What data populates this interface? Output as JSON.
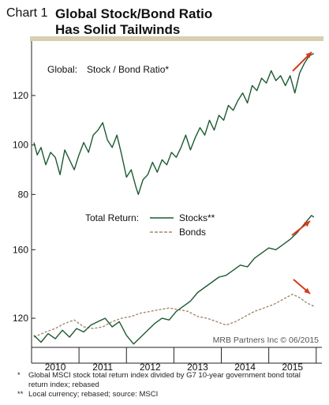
{
  "header": {
    "chart_number": "Chart 1",
    "title_line1": "Global Stock/Bond Ratio",
    "title_line2": "Has Solid Tailwinds"
  },
  "colors": {
    "stocks": "#1c5a32",
    "bonds": "#a08a6a",
    "arrow": "#d43a1a",
    "band": "#d7cfae",
    "axis": "#222222"
  },
  "chart_data": [
    {
      "type": "line",
      "panel": "top",
      "label": "Global:",
      "label2": "Stock / Bond Ratio*",
      "ylim": [
        75,
        142
      ],
      "yticks": [
        80,
        100,
        120
      ],
      "xlim": [
        2009.5,
        2015.62
      ],
      "series": [
        {
          "name": "Stock / Bond Ratio*",
          "x": [
            2009.55,
            2009.62,
            2009.7,
            2009.8,
            2009.9,
            2010.0,
            2010.1,
            2010.2,
            2010.3,
            2010.4,
            2010.5,
            2010.6,
            2010.7,
            2010.8,
            2010.9,
            2011.0,
            2011.1,
            2011.2,
            2011.3,
            2011.4,
            2011.5,
            2011.6,
            2011.7,
            2011.75,
            2011.85,
            2011.95,
            2012.05,
            2012.15,
            2012.25,
            2012.35,
            2012.45,
            2012.55,
            2012.65,
            2012.75,
            2012.85,
            2012.95,
            2013.05,
            2013.15,
            2013.25,
            2013.35,
            2013.45,
            2013.55,
            2013.65,
            2013.75,
            2013.85,
            2013.95,
            2014.05,
            2014.15,
            2014.25,
            2014.35,
            2014.45,
            2014.55,
            2014.65,
            2014.75,
            2014.85,
            2014.95,
            2015.05,
            2015.15,
            2015.25,
            2015.35,
            2015.45
          ],
          "y": [
            101,
            96,
            99,
            92,
            97,
            95,
            88,
            98,
            94,
            90,
            96,
            101,
            97,
            104,
            106,
            109,
            102,
            99,
            104,
            96,
            87,
            90,
            83,
            80,
            86,
            88,
            93,
            89,
            94,
            92,
            97,
            95,
            99,
            104,
            98,
            103,
            107,
            104,
            110,
            106,
            112,
            110,
            116,
            114,
            118,
            121,
            117,
            124,
            122,
            127,
            125,
            130,
            126,
            128,
            124,
            128,
            121,
            129,
            133,
            136,
            137
          ]
        }
      ]
    },
    {
      "type": "line",
      "panel": "bottom",
      "label": "Total Return:",
      "ylim": [
        103,
        185
      ],
      "yticks": [
        120,
        160
      ],
      "xlim": [
        2009.5,
        2015.62
      ],
      "series": [
        {
          "name": "Stocks**",
          "x": [
            2009.55,
            2009.7,
            2009.85,
            2010.0,
            2010.15,
            2010.3,
            2010.45,
            2010.6,
            2010.75,
            2010.9,
            2011.05,
            2011.2,
            2011.35,
            2011.5,
            2011.65,
            2011.8,
            2011.95,
            2012.1,
            2012.25,
            2012.4,
            2012.55,
            2012.7,
            2012.85,
            2013.0,
            2013.15,
            2013.3,
            2013.45,
            2013.6,
            2013.75,
            2013.9,
            2014.05,
            2014.2,
            2014.35,
            2014.5,
            2014.65,
            2014.8,
            2014.95,
            2015.1,
            2015.25,
            2015.4,
            2015.45
          ],
          "y": [
            110,
            106,
            111,
            108,
            113,
            109,
            114,
            112,
            116,
            118,
            120,
            115,
            118,
            110,
            105,
            109,
            113,
            117,
            120,
            119,
            124,
            127,
            130,
            135,
            138,
            141,
            144,
            145,
            148,
            151,
            150,
            155,
            158,
            161,
            160,
            163,
            166,
            170,
            175,
            180,
            179
          ]
        },
        {
          "name": "Bonds",
          "x": [
            2009.55,
            2009.8,
            2010.0,
            2010.2,
            2010.4,
            2010.6,
            2010.8,
            2011.0,
            2011.2,
            2011.4,
            2011.6,
            2011.8,
            2012.0,
            2012.2,
            2012.4,
            2012.6,
            2012.8,
            2013.0,
            2013.2,
            2013.4,
            2013.6,
            2013.8,
            2014.0,
            2014.2,
            2014.4,
            2014.6,
            2014.8,
            2015.0,
            2015.15,
            2015.3,
            2015.45
          ],
          "y": [
            109,
            112,
            114,
            117,
            119,
            115,
            114,
            115,
            118,
            120,
            121,
            123,
            124,
            125,
            126,
            125,
            124,
            121,
            120,
            118,
            116,
            118,
            121,
            124,
            126,
            128,
            131,
            134,
            132,
            129,
            127
          ]
        }
      ]
    }
  ],
  "xaxis": {
    "tick_labels": [
      "2010",
      "2011",
      "2012",
      "2013",
      "2014",
      "2015"
    ],
    "tick_centers": [
      2010.0,
      2011.0,
      2012.0,
      2013.0,
      2014.0,
      2015.0
    ],
    "year_boundaries": [
      2009.5,
      2010.5,
      2011.5,
      2012.5,
      2013.5,
      2014.5,
      2015.5
    ]
  },
  "credit": "MRB Partners Inc © 06/2015",
  "footnotes": [
    {
      "mark": "*",
      "text": "Global MSCI stock total return index divided by G7 10-year government bond total return index; rebased"
    },
    {
      "mark": "**",
      "text": "Local currency; rebased; source: MSCI"
    }
  ]
}
